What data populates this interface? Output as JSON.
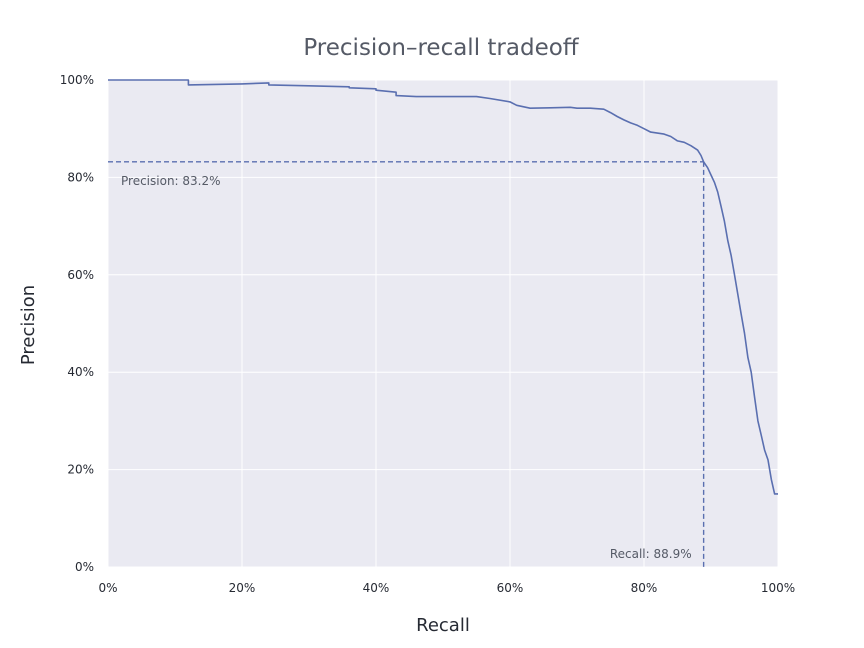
{
  "chart_data": {
    "type": "line",
    "title": "Precision–recall tradeoff",
    "xlabel": "Recall",
    "ylabel": "Precision",
    "xlim": [
      0,
      1
    ],
    "ylim": [
      0,
      1
    ],
    "xticks": [
      0,
      0.2,
      0.4,
      0.6,
      0.8,
      1.0
    ],
    "yticks": [
      0,
      0.2,
      0.4,
      0.6,
      0.8,
      1.0
    ],
    "xtick_labels": [
      "0%",
      "20%",
      "40%",
      "60%",
      "80%",
      "100%"
    ],
    "ytick_labels": [
      "0%",
      "20%",
      "40%",
      "60%",
      "80%",
      "100%"
    ],
    "grid": true,
    "colors": {
      "line": "#5a6fb0",
      "background": "#eaeaf2",
      "reference": "#5a6fb0"
    },
    "series": [
      {
        "x": [
          0.0,
          0.12,
          0.12,
          0.2,
          0.24,
          0.24,
          0.3,
          0.36,
          0.36,
          0.4,
          0.4,
          0.43,
          0.43,
          0.46,
          0.5,
          0.55,
          0.57,
          0.6,
          0.61,
          0.63,
          0.63,
          0.66,
          0.69,
          0.7,
          0.72,
          0.74,
          0.75,
          0.76,
          0.77,
          0.78,
          0.79,
          0.8,
          0.81,
          0.82,
          0.83,
          0.84,
          0.85,
          0.86,
          0.87,
          0.88,
          0.885,
          0.889,
          0.895,
          0.9,
          0.905,
          0.91,
          0.915,
          0.92,
          0.925,
          0.93,
          0.935,
          0.94,
          0.945,
          0.95,
          0.955,
          0.96,
          0.965,
          0.97,
          0.975,
          0.98,
          0.985,
          0.99,
          0.995,
          1.0
        ],
        "y": [
          1.0,
          1.0,
          0.99,
          0.992,
          0.994,
          0.99,
          0.988,
          0.986,
          0.984,
          0.982,
          0.979,
          0.975,
          0.968,
          0.966,
          0.966,
          0.966,
          0.962,
          0.955,
          0.948,
          0.942,
          0.942,
          0.943,
          0.944,
          0.942,
          0.942,
          0.94,
          0.933,
          0.925,
          0.918,
          0.912,
          0.907,
          0.9,
          0.893,
          0.891,
          0.889,
          0.884,
          0.875,
          0.872,
          0.865,
          0.856,
          0.845,
          0.832,
          0.82,
          0.805,
          0.79,
          0.77,
          0.74,
          0.71,
          0.67,
          0.64,
          0.6,
          0.56,
          0.52,
          0.48,
          0.43,
          0.4,
          0.35,
          0.3,
          0.27,
          0.24,
          0.22,
          0.18,
          0.15,
          0.15
        ]
      }
    ],
    "reference": {
      "recall": 0.889,
      "precision": 0.832,
      "precision_label": "Precision: 83.2%",
      "recall_label": "Recall: 88.9%"
    }
  }
}
